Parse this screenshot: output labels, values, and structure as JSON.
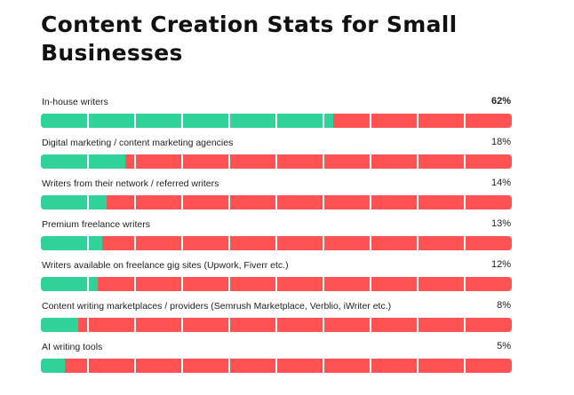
{
  "title": "Content Creation Stats for Small Businesses",
  "colors": {
    "share": "#2fd39a",
    "remainder": "#ff5252",
    "divider": "#ffffff"
  },
  "chart_data": {
    "type": "bar",
    "orientation": "horizontal",
    "stacked_to_100": true,
    "segments": 10,
    "title": "Content Creation Stats for Small Businesses",
    "categories": [
      "In-house writers",
      "Digital marketing / content marketing agencies",
      "Writers from their network / referred writers",
      "Premium freelance writers",
      "Writers available on freelance gig sites (Upwork, Fiverr etc.)",
      "Content writing marketplaces / providers (Semrush Marketplace, Verblio, iWriter etc.)",
      "AI writing tools"
    ],
    "values": [
      62,
      18,
      14,
      13,
      12,
      8,
      5
    ],
    "value_labels": [
      "62%",
      "18%",
      "14%",
      "13%",
      "12%",
      "8%",
      "5%"
    ],
    "xlim": [
      0,
      100
    ]
  }
}
